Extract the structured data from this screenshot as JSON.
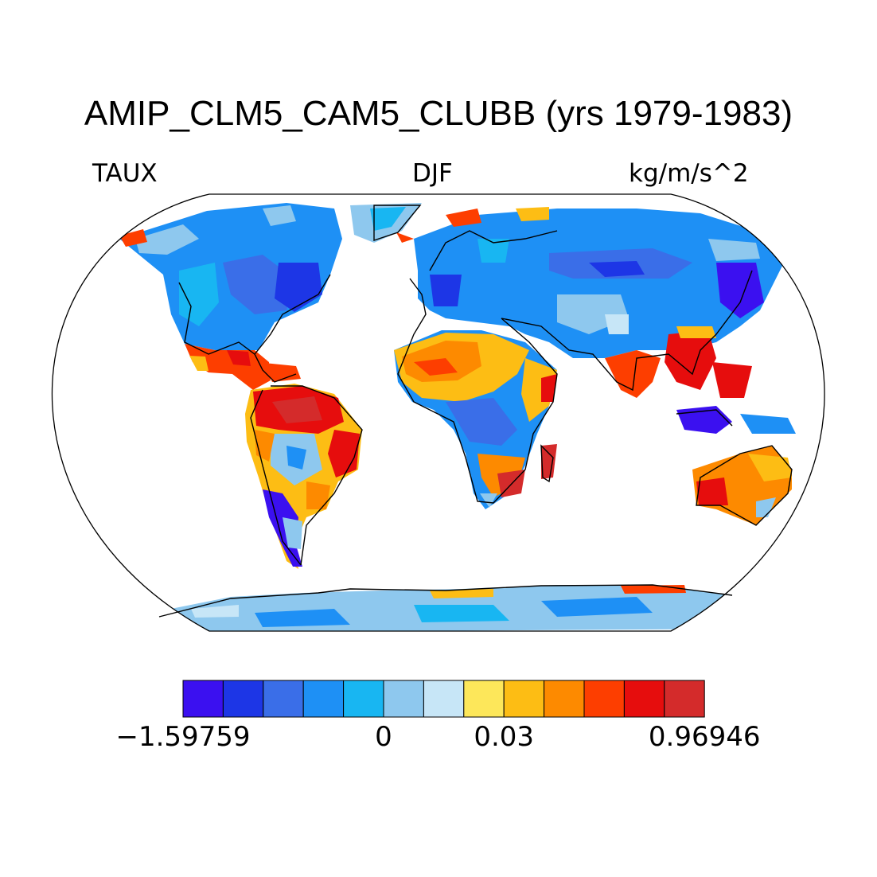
{
  "title": "AMIP_CLM5_CAM5_CLUBB (yrs 1979-1983)",
  "variable": "TAUX",
  "season": "DJF",
  "units": "kg/m/s^2",
  "colorbar": {
    "colors": [
      "#3b10f0",
      "#1d36e6",
      "#3a6ee8",
      "#1e90f5",
      "#18b6f2",
      "#8ec8ee",
      "#c7e6f7",
      "#fde75a",
      "#fdbd14",
      "#fd8a00",
      "#fd3e00",
      "#e60d0d",
      "#d42b2b"
    ],
    "labels": [
      {
        "text": "−1.59759",
        "box": 0
      },
      {
        "text": "0",
        "box": 5
      },
      {
        "text": "0.03",
        "box": 8
      },
      {
        "text": "0.96946",
        "box": 13
      }
    ]
  }
}
